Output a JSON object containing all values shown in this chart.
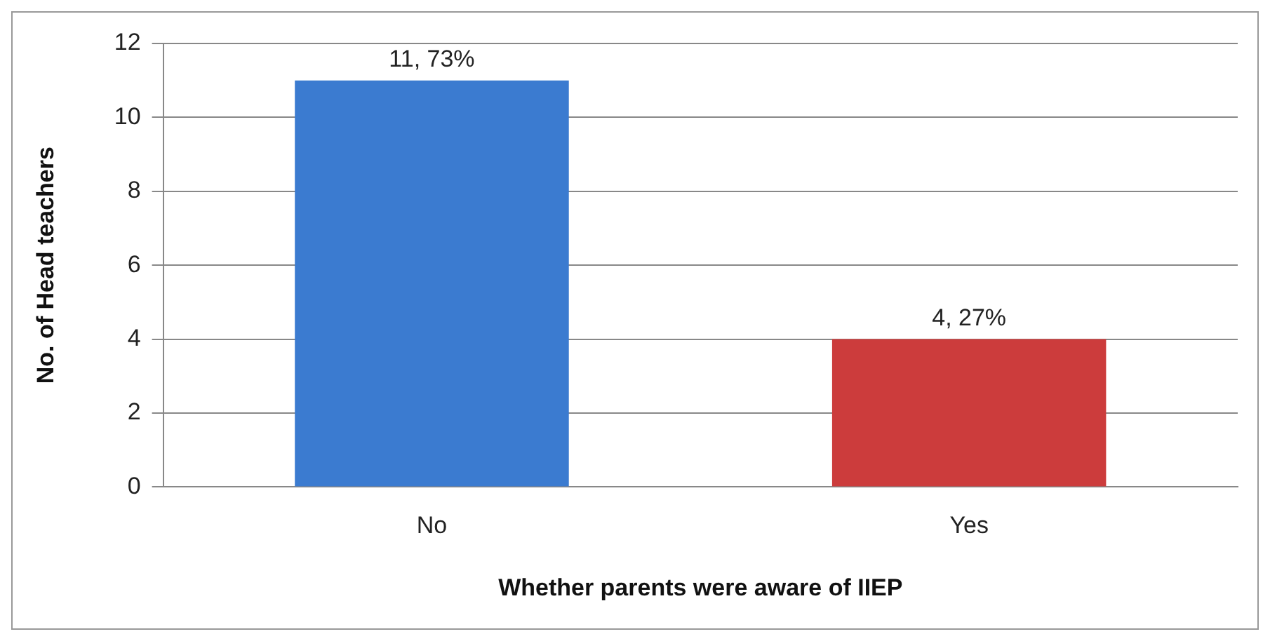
{
  "chart_data": {
    "type": "bar",
    "xlabel": "Whether parents were aware of IIEP",
    "ylabel": "No. of Head teachers",
    "categories": [
      "No",
      "Yes"
    ],
    "values": [
      11,
      4
    ],
    "colors": [
      "#3b7bd0",
      "#cc3c3c"
    ],
    "value_labels": [
      "11, 73%",
      "4, 27%"
    ],
    "ylim": [
      0,
      12
    ],
    "yticks": [
      0,
      2,
      4,
      6,
      8,
      10,
      12
    ],
    "grid": "y",
    "legend": false
  }
}
